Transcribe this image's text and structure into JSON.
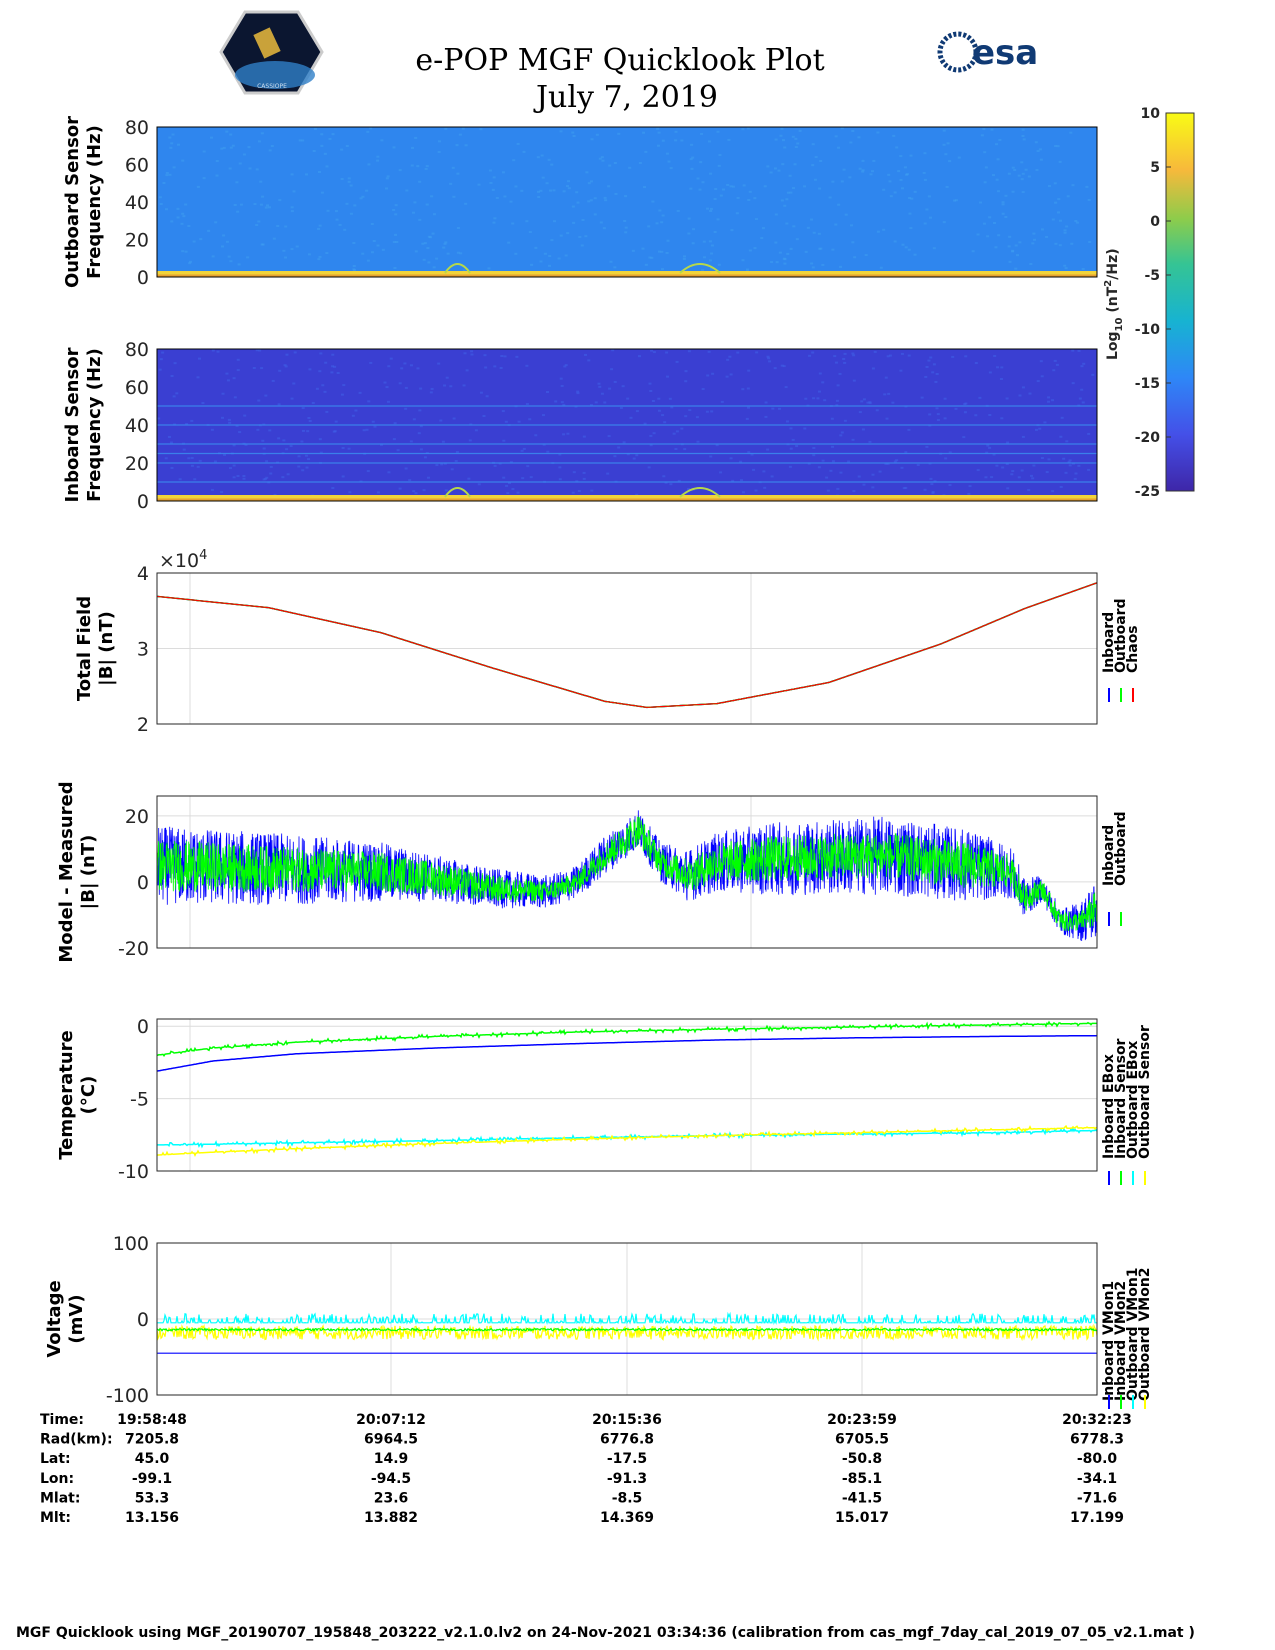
{
  "header": {
    "title": "e-POP MGF Quicklook Plot",
    "date": "July 7, 2019",
    "logo_left": "CASSIOPE",
    "logo_right": "esa"
  },
  "colorbar": {
    "label": "Log10 (nT2/Hz)",
    "label_main": "Log",
    "label_sub": "10",
    "label_unit1": " (nT",
    "label_sup": "2",
    "label_unit2": "/Hz)",
    "ticks": [
      "10",
      "5",
      "0",
      "-5",
      "-10",
      "-15",
      "-20",
      "-25"
    ],
    "range": [
      -25,
      10
    ]
  },
  "colors": {
    "inboard": "#0000ff",
    "outboard": "#00ff00",
    "chaos": "#ff0000",
    "inboard_ebox": "#0000ff",
    "inboard_sensor": "#00ff00",
    "outboard_ebox": "#00ffff",
    "outboard_sensor": "#ffff00"
  },
  "chart_data": [
    {
      "type": "heatmap",
      "name": "outboard_spectrogram",
      "ylabel1": "Outboard Sensor",
      "ylabel2": "Frequency (Hz)",
      "ylim": [
        0,
        80
      ],
      "yticks": [
        "80",
        "60",
        "40",
        "20",
        "0"
      ],
      "background_log10_power": -17,
      "low_freq_band_log10_power": 5
    },
    {
      "type": "heatmap",
      "name": "inboard_spectrogram",
      "ylabel1": "Inboard Sensor",
      "ylabel2": "Frequency (Hz)",
      "ylim": [
        0,
        80
      ],
      "yticks": [
        "80",
        "60",
        "40",
        "20",
        "0"
      ],
      "background_log10_power": -22,
      "harmonic_lines_hz": [
        10,
        20,
        25,
        30,
        40,
        50
      ],
      "low_freq_band_log10_power": 5
    },
    {
      "type": "line",
      "name": "total_field",
      "ylabel1": "Total Field",
      "ylabel2": "|B| (nT)",
      "exponent": "×10",
      "exponent_power": "4",
      "ylim": [
        20000,
        40000
      ],
      "yticks": [
        "4",
        "3",
        "2"
      ],
      "legend": [
        "Inboard",
        "Outboard",
        "Chaos"
      ],
      "x_minutes": [
        0,
        4,
        8,
        12,
        16,
        17.5,
        20,
        24,
        28,
        31,
        33.58
      ],
      "y": [
        36900,
        35400,
        32100,
        27400,
        23000,
        22200,
        22700,
        25500,
        30600,
        35300,
        38700
      ]
    },
    {
      "type": "line",
      "name": "model_minus_measured",
      "ylabel1": "Model - Measured",
      "ylabel2": "|B| (nT)",
      "ylim": [
        -20,
        26
      ],
      "yticks": [
        "20",
        "0",
        "-20"
      ],
      "legend": [
        "Inboard",
        "Outboard"
      ],
      "x_minutes": [
        0,
        4,
        8,
        10,
        12,
        14,
        15,
        16,
        17.2,
        18,
        19,
        20,
        22,
        26,
        29,
        30.5,
        31,
        31.6,
        32.3,
        33,
        33.58
      ],
      "center": [
        5,
        4,
        3,
        1,
        -2,
        -3,
        0,
        8,
        16,
        6,
        2,
        6,
        7,
        8,
        5,
        3,
        -5,
        -2,
        -12,
        -12,
        -8
      ],
      "spread_inboard": [
        12,
        11,
        9,
        7,
        6,
        5,
        5,
        6,
        6,
        6,
        8,
        9,
        11,
        12,
        11,
        8,
        6,
        4,
        4,
        6,
        10
      ],
      "spread_outboard": [
        8,
        7,
        6,
        5,
        4,
        3,
        3,
        4,
        5,
        4,
        5,
        6,
        7,
        7,
        7,
        5,
        4,
        3,
        3,
        3,
        6
      ]
    },
    {
      "type": "line",
      "name": "temperature",
      "ylabel1": "Temperature",
      "ylabel2": "(°C)",
      "ylim": [
        -10,
        0.5
      ],
      "yticks": [
        "0",
        "-5",
        "-10"
      ],
      "legend": [
        "Inboard EBox",
        "Inboard Sensor",
        "Outboard EBox",
        "Outboard Sensor"
      ],
      "x_minutes": [
        0,
        2,
        5,
        10,
        15,
        20,
        25,
        30,
        33.58
      ],
      "series": [
        {
          "name": "Inboard EBox",
          "values": [
            -3.1,
            -2.4,
            -1.9,
            -1.5,
            -1.2,
            -0.95,
            -0.8,
            -0.7,
            -0.65
          ]
        },
        {
          "name": "Inboard Sensor",
          "values": [
            -2.0,
            -1.5,
            -1.1,
            -0.7,
            -0.4,
            -0.2,
            -0.05,
            0.1,
            0.2
          ]
        },
        {
          "name": "Outboard EBox",
          "values": [
            -8.2,
            -8.15,
            -8.05,
            -7.9,
            -7.7,
            -7.55,
            -7.45,
            -7.35,
            -7.2
          ]
        },
        {
          "name": "Outboard Sensor",
          "values": [
            -8.9,
            -8.7,
            -8.45,
            -8.1,
            -7.8,
            -7.55,
            -7.35,
            -7.15,
            -7.0
          ]
        }
      ]
    },
    {
      "type": "line",
      "name": "voltage",
      "ylabel1": "Voltage",
      "ylabel2": "(mV)",
      "ylim": [
        -100,
        100
      ],
      "yticks": [
        "100",
        "0",
        "-100"
      ],
      "legend": [
        "Inboard VMon1",
        "Inboard VMon2",
        "Outboard VMon1",
        "Outboard VMon2"
      ],
      "series": [
        {
          "name": "Inboard VMon1",
          "mean": -45
        },
        {
          "name": "Inboard VMon2",
          "mean": -14
        },
        {
          "name": "Outboard VMon1",
          "mean": -5
        },
        {
          "name": "Outboard VMon2",
          "mean": -18
        }
      ]
    }
  ],
  "table": {
    "rows": [
      {
        "label": "Time:",
        "values": [
          "19:58:48",
          "20:07:12",
          "20:15:36",
          "20:23:59",
          "20:32:23"
        ]
      },
      {
        "label": "Rad(km):",
        "values": [
          "7205.8",
          "6964.5",
          "6776.8",
          "6705.5",
          "6778.3"
        ]
      },
      {
        "label": "Lat:",
        "values": [
          "45.0",
          "14.9",
          "-17.5",
          "-50.8",
          "-80.0"
        ]
      },
      {
        "label": "Lon:",
        "values": [
          "-99.1",
          "-94.5",
          "-91.3",
          "-85.1",
          "-34.1"
        ]
      },
      {
        "label": "Mlat:",
        "values": [
          "53.3",
          "23.6",
          "-8.5",
          "-41.5",
          "-71.6"
        ]
      },
      {
        "label": "Mlt:",
        "values": [
          "13.156",
          "13.882",
          "14.369",
          "15.017",
          "17.199"
        ]
      }
    ]
  },
  "footer": "MGF Quicklook using MGF_20190707_195848_203222_v2.1.0.lv2 on 24-Nov-2021 03:34:36 (calibration from cas_mgf_7day_cal_2019_07_05_v2.1.mat )"
}
